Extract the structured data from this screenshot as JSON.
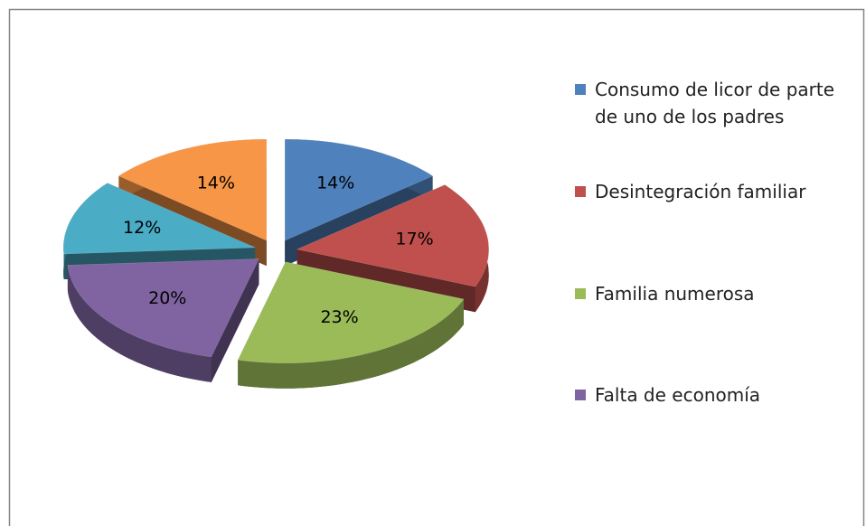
{
  "chart_data": {
    "type": "pie3d",
    "categories": [
      "Consumo de licor de parte de uno de los padres",
      "Desintegración familiar",
      "Familia numerosa",
      "Falta de economía",
      null,
      null
    ],
    "values": [
      14,
      17,
      23,
      20,
      12,
      14
    ],
    "value_labels": [
      "14%",
      "17%",
      "23%",
      "20%",
      "12%",
      "14%"
    ],
    "colors": [
      "#4f81bd",
      "#c0504d",
      "#9bbb59",
      "#8064a2",
      "#4bacc6",
      "#f79646"
    ],
    "legend": "right"
  }
}
